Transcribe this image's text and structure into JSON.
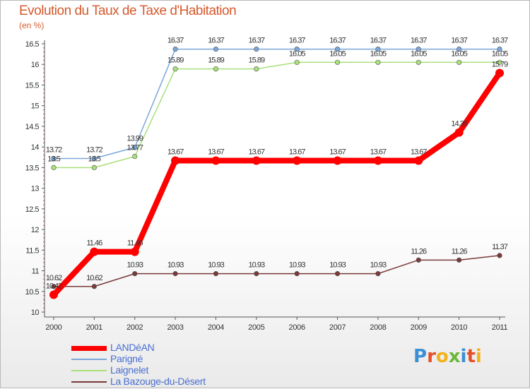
{
  "chart_data": {
    "type": "line",
    "title": "Evolution du Taux de Taxe d'Habitation",
    "ylabel": "(en %)",
    "ylim": [
      10,
      16.5
    ],
    "yticks": [
      "10",
      "10.5",
      "11",
      "11.5",
      "12",
      "12.5",
      "13",
      "13.5",
      "14",
      "14.5",
      "15",
      "15.5",
      "16",
      "16.5"
    ],
    "categories": [
      "2000",
      "2001",
      "2002",
      "2003",
      "2004",
      "2005",
      "2006",
      "2007",
      "2008",
      "2009",
      "2010",
      "2011"
    ],
    "series": [
      {
        "name": "LANDéAN",
        "color": "#ff0000",
        "values": [
          10.42,
          11.46,
          11.46,
          13.67,
          13.67,
          13.67,
          13.67,
          13.67,
          13.67,
          13.67,
          14.35,
          15.79
        ],
        "labels": [
          "10.42",
          "11.46",
          "11.46",
          "13.67",
          "13.67",
          "13.67",
          "13.67",
          "13.67",
          "13.67",
          "13.67",
          "14.35",
          "15.79"
        ]
      },
      {
        "name": "Parigné",
        "color": "#7aa7d8",
        "values": [
          13.72,
          13.72,
          13.99,
          16.37,
          16.37,
          16.37,
          16.37,
          16.37,
          16.37,
          16.37,
          16.37,
          16.37
        ],
        "labels": [
          "13.72",
          "13.72",
          "13.99",
          "16.37",
          "16.37",
          "16.37",
          "16.37",
          "16.37",
          "16.37",
          "16.37",
          "16.37",
          "16.37"
        ]
      },
      {
        "name": "Laignelet",
        "color": "#a8e07a",
        "values": [
          13.5,
          13.5,
          13.77,
          15.89,
          15.89,
          15.89,
          16.05,
          16.05,
          16.05,
          16.05,
          16.05,
          16.05
        ],
        "labels": [
          "13.5",
          "13.5",
          "13.77",
          "15.89",
          "15.89",
          "15.89",
          "16.05",
          "16.05",
          "16.05",
          "16.05",
          "16.05",
          "16.05"
        ]
      },
      {
        "name": "La Bazouge-du-Désert",
        "color": "#7a3a3a",
        "values": [
          10.62,
          10.62,
          10.93,
          10.93,
          10.93,
          10.93,
          10.93,
          10.93,
          10.93,
          11.26,
          11.26,
          11.37
        ],
        "labels": [
          "10.62",
          "10.62",
          "10.93",
          "10.93",
          "10.93",
          "10.93",
          "10.93",
          "10.93",
          "10.93",
          "11.26",
          "11.26",
          "11.37"
        ]
      }
    ],
    "grid": false,
    "legend": "bottom-left"
  },
  "logo": {
    "text": "Proxiti",
    "letter_colors": [
      "#3b8fd6",
      "#e5502a",
      "#f2b21b",
      "#6bb83a",
      "#3b8fd6",
      "#e5502a",
      "#f2b21b"
    ]
  }
}
